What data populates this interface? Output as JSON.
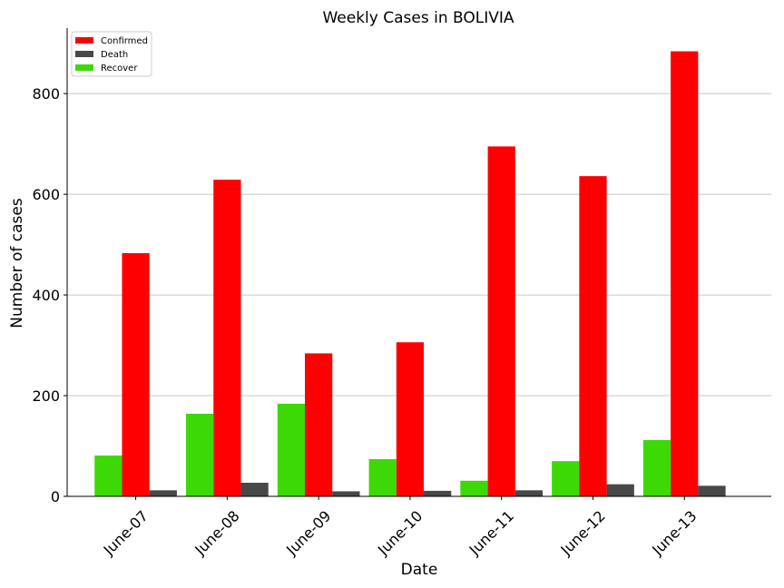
{
  "chart_data": {
    "type": "bar",
    "title": "Weekly Cases in BOLIVIA",
    "xlabel": "Date",
    "ylabel": "Number of cases",
    "categories": [
      "June-07",
      "June-08",
      "June-09",
      "June-10",
      "June-11",
      "June-12",
      "June-13"
    ],
    "series": [
      {
        "name": "Recover",
        "color": "#3dd907",
        "values": [
          81,
          164,
          184,
          74,
          31,
          70,
          112
        ]
      },
      {
        "name": "Confirmed",
        "color": "#ff0000",
        "values": [
          483,
          629,
          284,
          306,
          695,
          636,
          884
        ]
      },
      {
        "name": "Death",
        "color": "#484848",
        "values": [
          12,
          27,
          10,
          11,
          12,
          24,
          21
        ]
      }
    ],
    "legend": {
      "placement": "top-left",
      "order": [
        "Confirmed",
        "Death",
        "Recover"
      ]
    },
    "ylim": [
      0,
      930
    ],
    "yticks": [
      0,
      200,
      400,
      600,
      800
    ],
    "grid": {
      "y": true,
      "x": false,
      "color": "#c8c8c8"
    }
  }
}
